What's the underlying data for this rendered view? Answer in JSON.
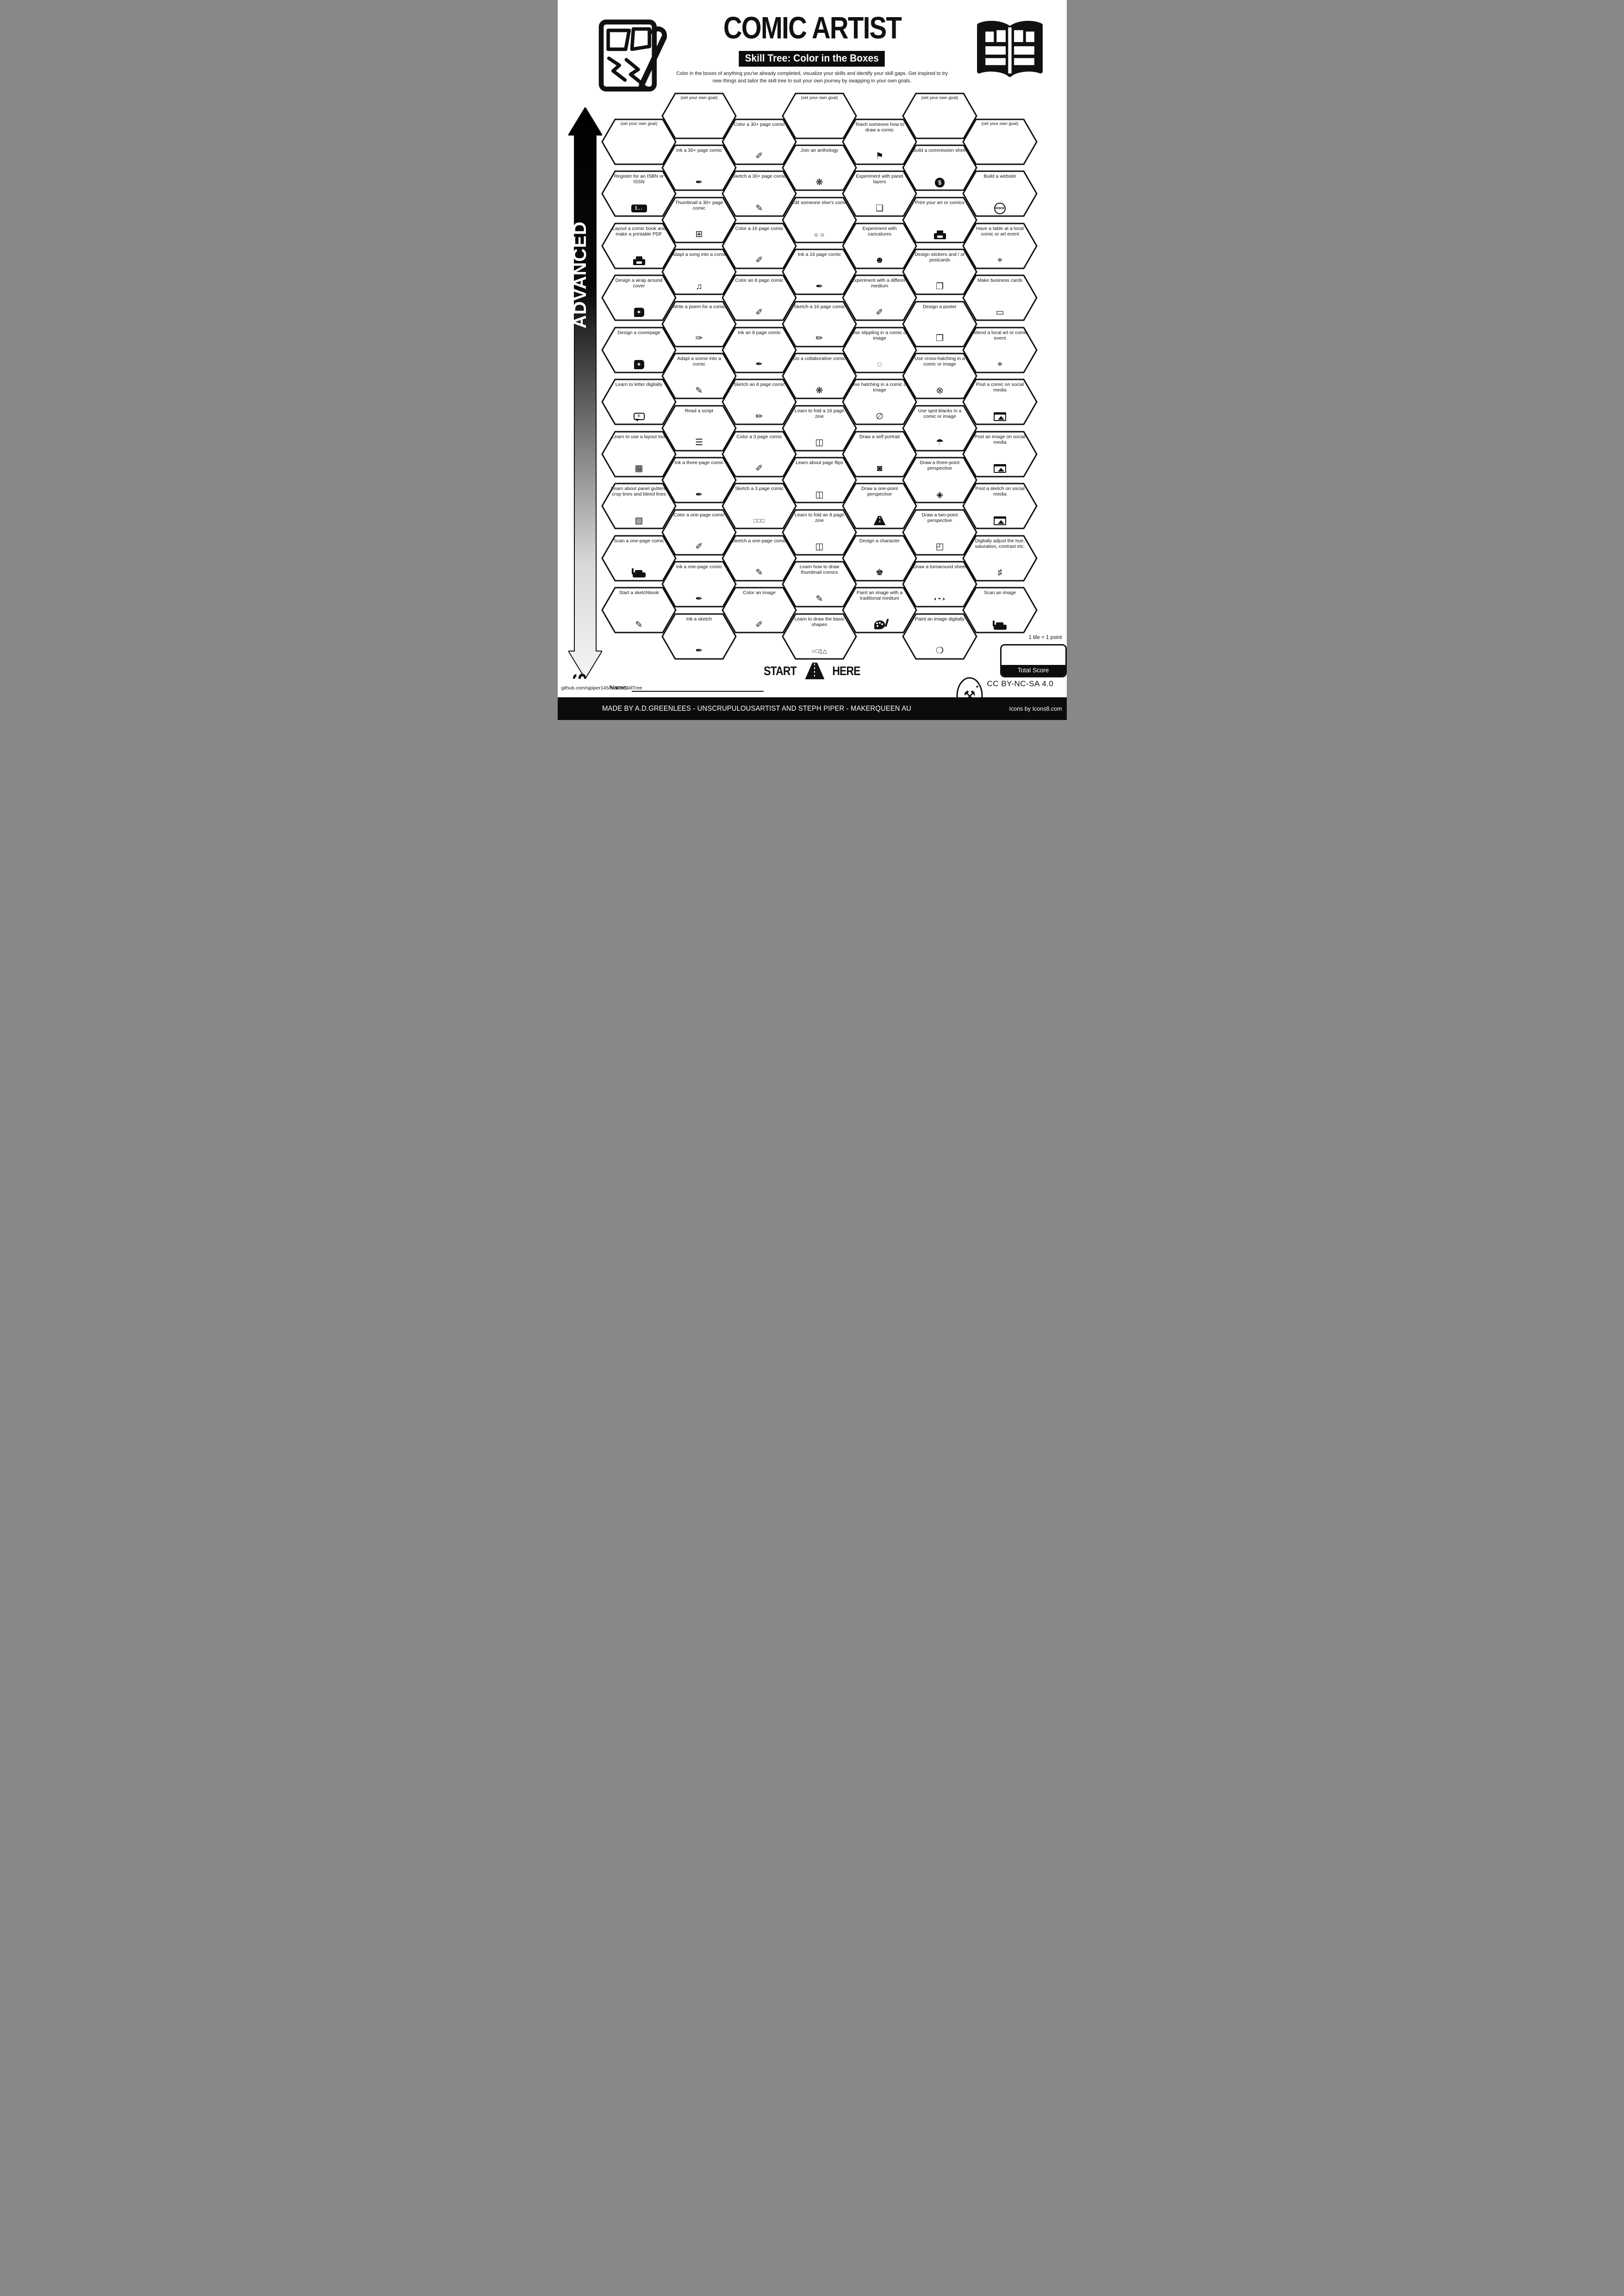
{
  "title": "COMIC ARTIST",
  "subtitle": "Skill Tree: Color in the Boxes",
  "description": "Color in the boxes of anything you've already completed, visualize your skills and identify your skill gaps.  Get inspired to try new things and tailor the skill tree to suit your own journey by swapping in your own goals.",
  "rail": {
    "top_label": "ADVANCED",
    "bottom_label": "BASICS"
  },
  "start_here": {
    "left": "START",
    "right": "HERE"
  },
  "name_label": "Name:",
  "github": "github.com/sjpiper145/MakerSkillTree",
  "score": {
    "tile_note": "1 tile = 1 point",
    "total_label": "Total Score"
  },
  "footer": {
    "credit": "MADE BY A.D.GREENLEES - UNSCRUPULOUSARTIST AND STEPH PIPER  -  MAKERQUEEN AU",
    "icons_credit": "Icons by Icons8.com",
    "license": "CC BY-NC-SA 4.0"
  },
  "colors": {
    "ink": "#111111",
    "paper": "#ffffff",
    "rail_light": "#f2f2f2"
  },
  "icon_glyphs": {
    "ink-bottle-icon": "✒",
    "paintbrush-icon": "✐",
    "pencil-icon": "✏",
    "sketch-page-icon": "✎",
    "sketchbook-icon": "✎",
    "thumbnail-grid-icon": "⊞",
    "music-note-icon": "♫",
    "poem-pen-icon": "✑",
    "script-scroll-icon": "☰",
    "network-people-icon": "❋",
    "collaboration-people-icon": "☺☺",
    "zine-pages-icon": "◫",
    "basic-shapes-icon": "○□▯△",
    "teaching-icon": "⚑",
    "layers-icon": "❏",
    "caricature-face-icon": "☻",
    "marker-icon": "✐",
    "stipple-circle-icon": "◌",
    "hatching-circle-icon": "∅",
    "crosshatch-circle-icon": "⊗",
    "spot-blacks-umbrella-icon": "☂",
    "self-portrait-icon": "◙",
    "character-head-icon": "♚",
    "sticker-icon": "❐",
    "poster-icon": "❒",
    "three-point-cube-icon": "◈",
    "two-point-cube-icon": "◰",
    "turnaround-heads-icon": "◐◓◑",
    "digital-mouse-icon": "❍",
    "location-pin-icon": "⌖",
    "business-card-icon": "▭",
    "sliders-icon": "♯",
    "layout-panels-icon": "▦",
    "panel-gutters-icon": "▧",
    "three-pages-icon": "□□□",
    "isbn-badge-icon": "css:isbn|1..",
    "printer-icon": "css:printer|",
    "wraparound-book-icon": "css:book|✦",
    "cover-book-icon": "css:book|✦",
    "speech-bubble-icon": "css:bubble|≡",
    "scanner-icon": "css:scanner|",
    "globe-www-icon": "css:globe|www",
    "money-bag-icon": "css:money|$",
    "palette-icon": "css:palette|",
    "road-icon": "css:road|",
    "social-post-icon": "css:social|"
  },
  "columns": [
    {
      "offset": "low",
      "skills": [
        {
          "label": "(set your own goal)",
          "goal": true
        },
        {
          "label": "Register for an ISBN or ISSN",
          "icon": "isbn-badge-icon"
        },
        {
          "label": "Layout a comic book and make a printable PDF",
          "icon": "printer-icon"
        },
        {
          "label": "Design a wrap around cover",
          "icon": "wraparound-book-icon"
        },
        {
          "label": "Design a coverpage",
          "icon": "cover-book-icon"
        },
        {
          "label": "Learn to letter digitally",
          "icon": "speech-bubble-icon"
        },
        {
          "label": "Learn to use a layout tool",
          "icon": "layout-panels-icon"
        },
        {
          "label": "Learn about panel gutters, crop lines and bleed lines",
          "icon": "panel-gutters-icon"
        },
        {
          "label": "Scan a one-page comic",
          "icon": "scanner-icon"
        },
        {
          "label": "Start a sketchbook",
          "icon": "sketchbook-icon"
        }
      ]
    },
    {
      "offset": "high",
      "skills": [
        {
          "label": "(set your own goal)",
          "goal": true
        },
        {
          "label": "Ink a 30+ page comic",
          "icon": "ink-bottle-icon"
        },
        {
          "label": "Thumbnail a 30+ page comic",
          "icon": "thumbnail-grid-icon"
        },
        {
          "label": "Adapt a song into a comic",
          "icon": "music-note-icon"
        },
        {
          "label": "Write a poem for a comic",
          "icon": "poem-pen-icon"
        },
        {
          "label": "Adapt a scene into a comic",
          "icon": "sketch-page-icon"
        },
        {
          "label": "Read a script",
          "icon": "script-scroll-icon"
        },
        {
          "label": "Ink a three-page comic",
          "icon": "ink-bottle-icon"
        },
        {
          "label": "Color a one-page comic",
          "icon": "paintbrush-icon"
        },
        {
          "label": "Ink a one-page comic",
          "icon": "ink-bottle-icon"
        },
        {
          "label": "Ink a sketch",
          "icon": "ink-bottle-icon"
        }
      ]
    },
    {
      "offset": "low",
      "skills": [
        {
          "label": "Color a 30+ page comic",
          "icon": "paintbrush-icon"
        },
        {
          "label": "Sketch a 30+ page comic",
          "icon": "sketch-page-icon"
        },
        {
          "label": "Color a 16 page comic",
          "icon": "paintbrush-icon"
        },
        {
          "label": "Color an 8 page comic",
          "icon": "paintbrush-icon"
        },
        {
          "label": "Ink an 8 page comic",
          "icon": "ink-bottle-icon"
        },
        {
          "label": "Sketch an 8 page comic",
          "icon": "pencil-icon"
        },
        {
          "label": "Color a 3 page comic",
          "icon": "paintbrush-icon"
        },
        {
          "label": "Sketch a 3 page comic",
          "icon": "three-pages-icon"
        },
        {
          "label": "Sketch a one-page comic",
          "icon": "sketch-page-icon"
        },
        {
          "label": "Color an image",
          "icon": "paintbrush-icon"
        }
      ]
    },
    {
      "offset": "high",
      "skills": [
        {
          "label": "(set your own goal)",
          "goal": true
        },
        {
          "label": "Join an anthology",
          "icon": "network-people-icon"
        },
        {
          "label": "Edit someone else's comic",
          "icon": "collaboration-people-icon"
        },
        {
          "label": "Ink a 16 page comic",
          "icon": "ink-bottle-icon"
        },
        {
          "label": "Sketch a 16 page comic",
          "icon": "pencil-icon"
        },
        {
          "label": "Do a collaborative comic",
          "icon": "network-people-icon"
        },
        {
          "label": "Learn to fold a 16 page zine",
          "icon": "zine-pages-icon"
        },
        {
          "label": "Learn about page flips",
          "icon": "zine-pages-icon"
        },
        {
          "label": "Learn to fold an 8 page zine",
          "icon": "zine-pages-icon"
        },
        {
          "label": "Learn how to draw thumbnail comics",
          "icon": "sketch-page-icon"
        },
        {
          "label": "Learn to draw the basic shapes",
          "icon": "basic-shapes-icon"
        }
      ]
    },
    {
      "offset": "low",
      "skills": [
        {
          "label": "Teach someone how to draw a comic",
          "icon": "teaching-icon"
        },
        {
          "label": "Experiment with panel layers",
          "icon": "layers-icon"
        },
        {
          "label": "Experiment with caricatures",
          "icon": "caricature-face-icon"
        },
        {
          "label": "Experiment with a different medium",
          "icon": "marker-icon"
        },
        {
          "label": "Use stippling in a comic or image",
          "icon": "stipple-circle-icon"
        },
        {
          "label": "Use hatching in a comic or image",
          "icon": "hatching-circle-icon"
        },
        {
          "label": "Draw a self portrait",
          "icon": "self-portrait-icon"
        },
        {
          "label": "Draw a one-point perspective",
          "icon": "road-icon"
        },
        {
          "label": "Design a character",
          "icon": "character-head-icon"
        },
        {
          "label": "Paint an image with a traditional medium",
          "icon": "palette-icon"
        }
      ]
    },
    {
      "offset": "high",
      "skills": [
        {
          "label": "(set your own goal)",
          "goal": true
        },
        {
          "label": "Build a commission sheet",
          "icon": "money-bag-icon"
        },
        {
          "label": "Print your art or comics",
          "icon": "printer-icon"
        },
        {
          "label": "Design stickers and / or postcards",
          "icon": "sticker-icon"
        },
        {
          "label": "Design a poster",
          "icon": "poster-icon"
        },
        {
          "label": "Use cross-hatching in a comic or image",
          "icon": "crosshatch-circle-icon"
        },
        {
          "label": "Use spot-blacks in a comic or image",
          "icon": "spot-blacks-umbrella-icon"
        },
        {
          "label": "Draw a three-point perspective",
          "icon": "three-point-cube-icon"
        },
        {
          "label": "Draw a two-point perspective",
          "icon": "two-point-cube-icon"
        },
        {
          "label": "Draw a turnaround sheet",
          "icon": "turnaround-heads-icon"
        },
        {
          "label": "Paint an image digitally",
          "icon": "digital-mouse-icon"
        }
      ]
    },
    {
      "offset": "low",
      "skills": [
        {
          "label": "(set your own goal)",
          "goal": true
        },
        {
          "label": "Build a website",
          "icon": "globe-www-icon"
        },
        {
          "label": "Have a table at a local comic or art event",
          "icon": "location-pin-icon"
        },
        {
          "label": "Make business cards",
          "icon": "business-card-icon"
        },
        {
          "label": "Attend a local art or comic event",
          "icon": "location-pin-icon"
        },
        {
          "label": "Post a comic on social media",
          "icon": "social-post-icon"
        },
        {
          "label": "Post an image on social media",
          "icon": "social-post-icon"
        },
        {
          "label": "Post a sketch on social media",
          "icon": "social-post-icon"
        },
        {
          "label": "Digitally adjust the hue, saturation, contrast etc.",
          "icon": "sliders-icon"
        },
        {
          "label": "Scan an image",
          "icon": "scanner-icon"
        }
      ]
    }
  ]
}
